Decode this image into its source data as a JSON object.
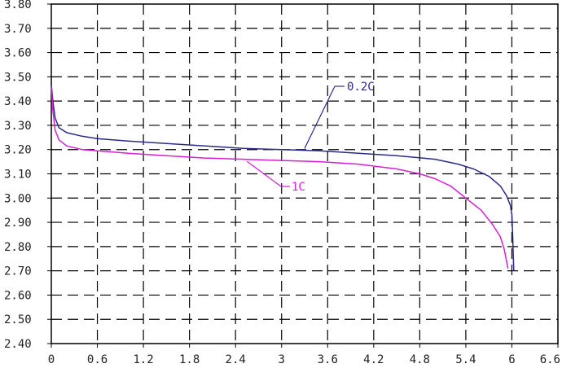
{
  "chart_data": {
    "type": "line",
    "title": "",
    "xlabel": "",
    "ylabel": "",
    "xlim": [
      0,
      6.6
    ],
    "ylim": [
      2.4,
      3.8
    ],
    "grid": true,
    "grid_style": "dashed",
    "x_ticks": [
      "0",
      "0.6",
      "1.2",
      "1.8",
      "2.4",
      "3",
      "3.6",
      "4.2",
      "4.8",
      "5.4",
      "6",
      "6.6"
    ],
    "y_ticks": [
      "2.40",
      "2.50",
      "2.60",
      "2.70",
      "2.80",
      "2.90",
      "3.00",
      "3.10",
      "3.20",
      "3.30",
      "3.40",
      "3.50",
      "3.60",
      "3.70",
      "3.80"
    ],
    "series": [
      {
        "name": "0.2C",
        "color": "#2a2a8c",
        "x": [
          0.0,
          0.02,
          0.05,
          0.1,
          0.2,
          0.4,
          0.6,
          1.0,
          1.5,
          2.0,
          2.5,
          3.0,
          3.5,
          4.0,
          4.5,
          5.0,
          5.3,
          5.5,
          5.7,
          5.85,
          5.93,
          5.98,
          6.0,
          6.01,
          6.02,
          6.025
        ],
        "y": [
          3.47,
          3.4,
          3.33,
          3.29,
          3.27,
          3.255,
          3.245,
          3.235,
          3.225,
          3.215,
          3.205,
          3.2,
          3.195,
          3.185,
          3.175,
          3.16,
          3.14,
          3.12,
          3.09,
          3.05,
          3.01,
          2.97,
          2.93,
          2.85,
          2.75,
          2.7
        ]
      },
      {
        "name": "1C",
        "color": "#d61fd6",
        "x": [
          0.0,
          0.02,
          0.05,
          0.1,
          0.2,
          0.4,
          0.6,
          1.0,
          1.5,
          2.0,
          2.5,
          3.0,
          3.5,
          4.0,
          4.5,
          4.8,
          5.0,
          5.2,
          5.4,
          5.6,
          5.75,
          5.85,
          5.9,
          5.93,
          5.95
        ],
        "y": [
          3.46,
          3.36,
          3.28,
          3.24,
          3.215,
          3.2,
          3.195,
          3.185,
          3.175,
          3.165,
          3.16,
          3.155,
          3.15,
          3.14,
          3.12,
          3.1,
          3.08,
          3.05,
          3.0,
          2.95,
          2.89,
          2.84,
          2.79,
          2.74,
          2.71
        ]
      }
    ],
    "annotations": [
      {
        "text": "0.2C",
        "series": "0.2C"
      },
      {
        "text": "1C",
        "series": "1C"
      }
    ]
  }
}
